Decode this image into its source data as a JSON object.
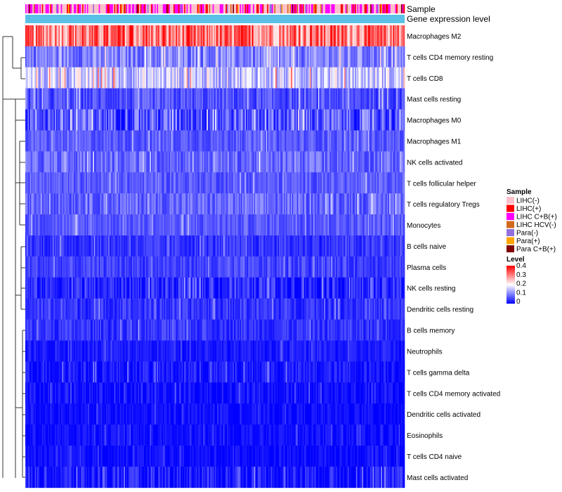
{
  "chart_data": {
    "type": "heatmap",
    "title": "",
    "annotation_tracks": [
      "Sample",
      "Gene expression level"
    ],
    "rows": [
      {
        "label": "Macrophages M2",
        "mean": 0.3,
        "spread": 0.09
      },
      {
        "label": "T cells CD4 memory resting",
        "mean": 0.1,
        "spread": 0.05
      },
      {
        "label": "T cells CD8",
        "mean": 0.16,
        "spread": 0.07
      },
      {
        "label": "Mast cells resting",
        "mean": 0.06,
        "spread": 0.04
      },
      {
        "label": "Macrophages M0",
        "mean": 0.07,
        "spread": 0.07
      },
      {
        "label": "Macrophages M1",
        "mean": 0.07,
        "spread": 0.03
      },
      {
        "label": "NK cells activated",
        "mean": 0.08,
        "spread": 0.04
      },
      {
        "label": "T cells follicular helper",
        "mean": 0.07,
        "spread": 0.03
      },
      {
        "label": "T cells regulatory  Tregs",
        "mean": 0.08,
        "spread": 0.04
      },
      {
        "label": "Monocytes",
        "mean": 0.07,
        "spread": 0.03
      },
      {
        "label": "B cells naive",
        "mean": 0.04,
        "spread": 0.03
      },
      {
        "label": "Plasma cells",
        "mean": 0.05,
        "spread": 0.03
      },
      {
        "label": "NK cells resting",
        "mean": 0.03,
        "spread": 0.04
      },
      {
        "label": "Dendritic cells resting",
        "mean": 0.04,
        "spread": 0.03
      },
      {
        "label": "B cells memory",
        "mean": 0.04,
        "spread": 0.03
      },
      {
        "label": "Neutrophils",
        "mean": 0.02,
        "spread": 0.02
      },
      {
        "label": "T cells gamma delta",
        "mean": 0.02,
        "spread": 0.03
      },
      {
        "label": "T cells CD4 memory activated",
        "mean": 0.01,
        "spread": 0.03
      },
      {
        "label": "Dendritic cells activated",
        "mean": 0.01,
        "spread": 0.02
      },
      {
        "label": "Eosinophils",
        "mean": 0.01,
        "spread": 0.02
      },
      {
        "label": "T cells CD4 naive",
        "mean": 0.01,
        "spread": 0.02
      },
      {
        "label": "Mast cells activated",
        "mean": 0.02,
        "spread": 0.04
      }
    ],
    "sample_column_count": 320,
    "legend_sample": {
      "title": "Sample",
      "items": [
        {
          "label": "LIHC(-)",
          "color": "#ffc0cb"
        },
        {
          "label": "LIHC(+)",
          "color": "#ff0000"
        },
        {
          "label": "LIHC C+B(+)",
          "color": "#ff00ff"
        },
        {
          "label": "LIHC HCV(-)",
          "color": "#d2691e"
        },
        {
          "label": "Para(-)",
          "color": "#9370db"
        },
        {
          "label": "Para(+)",
          "color": "#ffa500"
        },
        {
          "label": "Para C+B(+)",
          "color": "#800000"
        }
      ]
    },
    "legend_level": {
      "title": "Level",
      "ticks": [
        "0.4",
        "0.3",
        "0.2",
        "0.1",
        "0"
      ],
      "range": [
        0,
        0.4
      ],
      "colors": [
        "#0000ff",
        "#ffffff",
        "#ff0000"
      ]
    },
    "expression_track_color": "#5bc0e6"
  }
}
